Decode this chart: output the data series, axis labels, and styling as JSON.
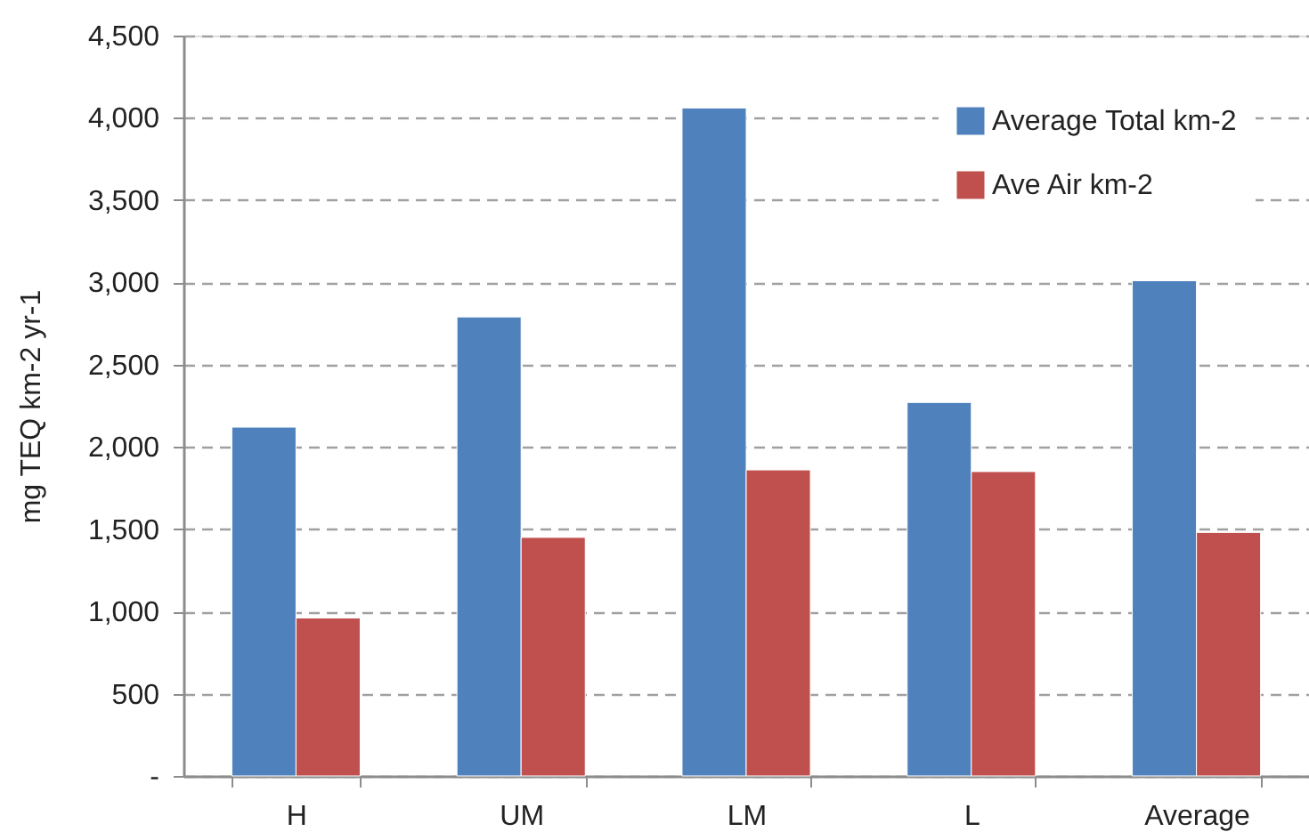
{
  "chart_data": {
    "type": "bar",
    "ylabel": "mg TEQ km-2 yr-1",
    "categories": [
      "H",
      "UM",
      "LM",
      "L",
      "Average"
    ],
    "series": [
      {
        "name": "Average Total km-2",
        "color": "#4f81bd",
        "values": [
          2120,
          2790,
          4060,
          2270,
          3010
        ]
      },
      {
        "name": "Ave Air km-2",
        "color": "#c0504d",
        "values": [
          960,
          1450,
          1860,
          1850,
          1480
        ]
      }
    ],
    "ylim": [
      0,
      4500
    ],
    "yticks": [
      {
        "value": 0,
        "label": "-"
      },
      500,
      {
        "value": 1000,
        "label": "1,000"
      },
      {
        "value": 1500,
        "label": "1,500"
      },
      {
        "value": 2000,
        "label": "2,000"
      },
      {
        "value": 2500,
        "label": "2,500"
      },
      {
        "value": 3000,
        "label": "3,000"
      },
      {
        "value": 3500,
        "label": "3,500"
      },
      {
        "value": 4000,
        "label": "4,000"
      },
      {
        "value": 4500,
        "label": "4,500"
      }
    ],
    "grid": "y",
    "legend": "top right"
  }
}
